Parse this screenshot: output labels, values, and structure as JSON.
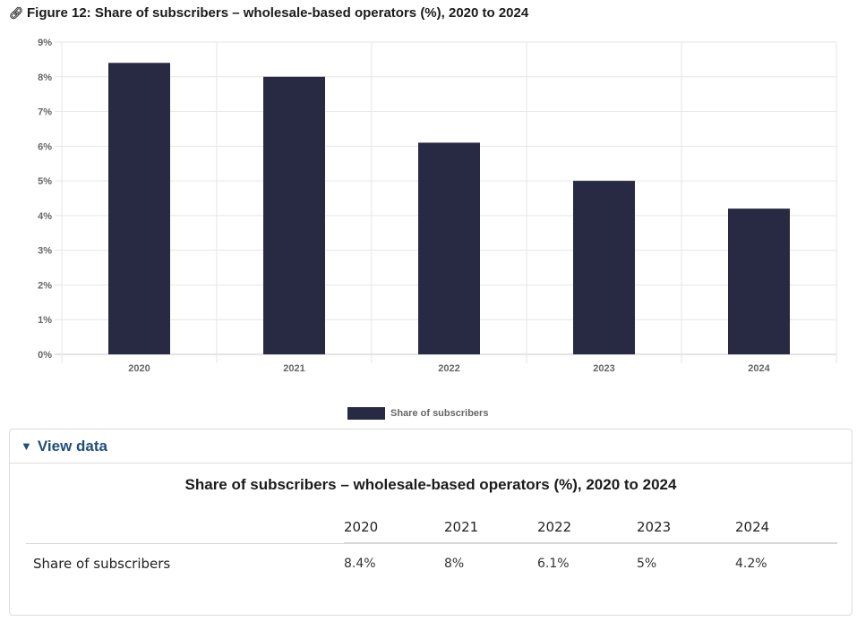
{
  "figure": {
    "title": "Figure 12: Share of subscribers – wholesale-based operators (%), 2020 to 2024",
    "link_icon": "link-icon"
  },
  "chart_data": {
    "type": "bar",
    "title": "Figure 12: Share of subscribers – wholesale-based operators (%), 2020 to 2024",
    "categories": [
      "2020",
      "2021",
      "2022",
      "2023",
      "2024"
    ],
    "series": [
      {
        "name": "Share of subscribers",
        "values": [
          8.4,
          8,
          6.1,
          5,
          4.2
        ],
        "color": "#272a42"
      }
    ],
    "xlabel": "",
    "ylabel": "",
    "ylim": [
      0,
      9
    ],
    "yticks": [
      "0%",
      "1%",
      "2%",
      "3%",
      "4%",
      "5%",
      "6%",
      "7%",
      "8%",
      "9%"
    ],
    "grid": true,
    "legend": "bottom-center"
  },
  "legend": {
    "label": "Share of subscribers"
  },
  "view_data": {
    "toggle_icon": "▼",
    "label": "View data",
    "table_title": "Share of subscribers – wholesale-based operators (%), 2020 to 2024",
    "columns": [
      "2020",
      "2021",
      "2022",
      "2023",
      "2024"
    ],
    "rows": [
      {
        "label": "Share of subscribers",
        "values": [
          "8.4%",
          "8%",
          "6.1%",
          "5%",
          "4.2%"
        ]
      }
    ]
  }
}
